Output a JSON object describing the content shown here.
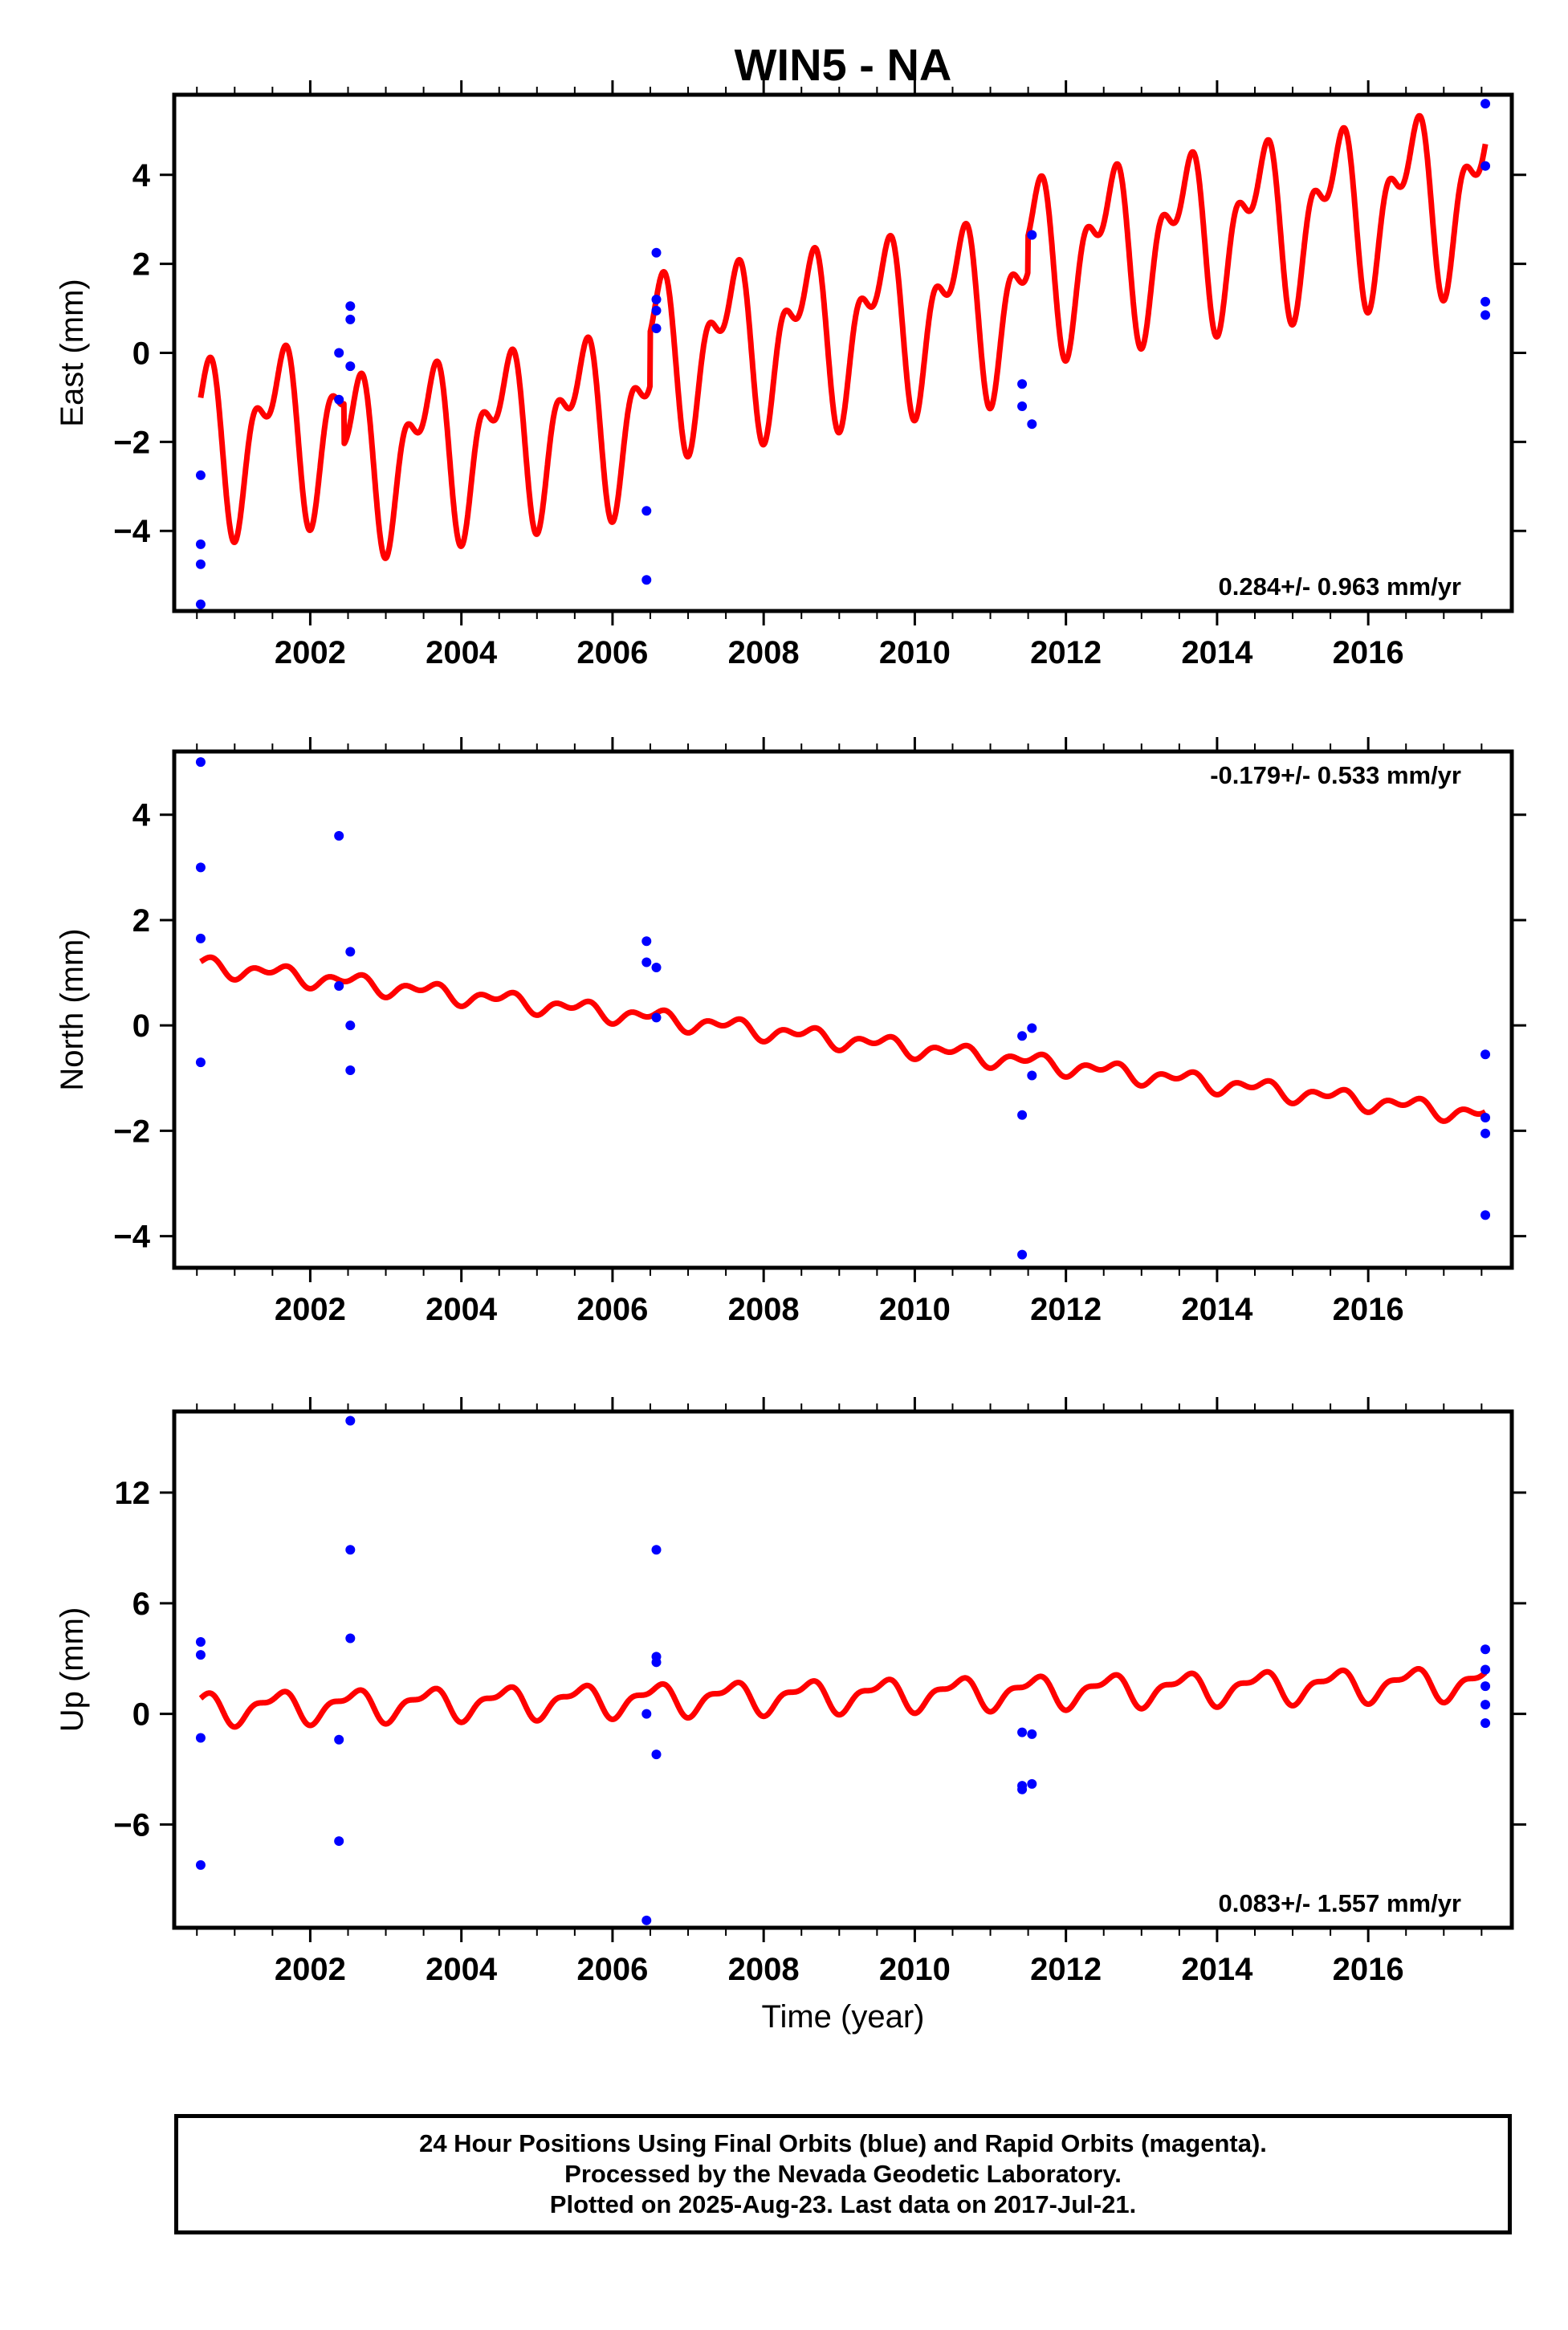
{
  "title": "WIN5 - NA",
  "xlabel": "Time (year)",
  "footer": [
    "24 Hour Positions Using Final Orbits (blue) and Rapid Orbits (magenta).",
    "Processed by the Nevada Geodetic Laboratory.",
    "Plotted on 2025-Aug-23. Last data on 2017-Jul-21."
  ],
  "colors": {
    "final_orbit_points": "#0000ff",
    "model_line": "#ff0000"
  },
  "chart_data": [
    {
      "type": "scatter",
      "id": "east",
      "ylabel": "East (mm)",
      "xlim": [
        2000.2,
        2017.9
      ],
      "ylim": [
        -5.8,
        5.8
      ],
      "x_ticks": [
        "2002",
        "2004",
        "2006",
        "2008",
        "2010",
        "2012",
        "2014",
        "2016"
      ],
      "y_ticks": [
        "−4",
        "−2",
        "0",
        "2",
        "4"
      ],
      "rate": "0.284+/- 0.963 mm/yr",
      "points": [
        [
          2000.55,
          -2.75
        ],
        [
          2000.55,
          -4.3
        ],
        [
          2000.55,
          -4.75
        ],
        [
          2000.55,
          -5.65
        ],
        [
          2002.38,
          0.0
        ],
        [
          2002.38,
          -1.05
        ],
        [
          2002.53,
          1.05
        ],
        [
          2002.53,
          0.75
        ],
        [
          2002.53,
          -0.3
        ],
        [
          2006.45,
          -3.55
        ],
        [
          2006.45,
          -5.1
        ],
        [
          2006.58,
          2.25
        ],
        [
          2006.58,
          1.2
        ],
        [
          2006.58,
          0.95
        ],
        [
          2006.58,
          0.55
        ],
        [
          2011.42,
          -0.7
        ],
        [
          2011.42,
          -1.2
        ],
        [
          2011.55,
          2.65
        ],
        [
          2011.55,
          -1.6
        ],
        [
          2017.55,
          5.6
        ],
        [
          2017.55,
          4.2
        ],
        [
          2017.55,
          1.15
        ],
        [
          2017.55,
          0.85
        ]
      ],
      "model": {
        "x_start": 2000.55,
        "x_end": 2017.55,
        "y_start": -2.0,
        "y_end": 2.6,
        "annual_amp": 1.55,
        "semiannual_amp": 0.95,
        "steps": [
          [
            2002.45,
            -0.9
          ],
          [
            2006.5,
            1.2
          ],
          [
            2011.5,
            0.8
          ]
        ]
      }
    },
    {
      "type": "scatter",
      "id": "north",
      "ylabel": "North (mm)",
      "xlim": [
        2000.2,
        2017.9
      ],
      "ylim": [
        -4.6,
        5.2
      ],
      "x_ticks": [
        "2002",
        "2004",
        "2006",
        "2008",
        "2010",
        "2012",
        "2014",
        "2016"
      ],
      "y_ticks": [
        "−4",
        "−2",
        "0",
        "2",
        "4"
      ],
      "rate": "-0.179+/- 0.533 mm/yr",
      "points": [
        [
          2000.55,
          5.0
        ],
        [
          2000.55,
          3.0
        ],
        [
          2000.55,
          1.65
        ],
        [
          2000.55,
          -0.7
        ],
        [
          2002.38,
          3.6
        ],
        [
          2002.38,
          0.75
        ],
        [
          2002.53,
          1.4
        ],
        [
          2002.53,
          0.0
        ],
        [
          2002.53,
          -0.85
        ],
        [
          2006.45,
          1.6
        ],
        [
          2006.45,
          1.2
        ],
        [
          2006.58,
          1.1
        ],
        [
          2006.58,
          0.15
        ],
        [
          2011.42,
          -0.2
        ],
        [
          2011.42,
          -1.7
        ],
        [
          2011.42,
          -4.35
        ],
        [
          2011.55,
          -0.05
        ],
        [
          2011.55,
          -0.95
        ],
        [
          2017.55,
          -0.55
        ],
        [
          2017.55,
          -1.75
        ],
        [
          2017.55,
          -2.05
        ],
        [
          2017.55,
          -3.6
        ]
      ],
      "model": {
        "x_start": 2000.55,
        "x_end": 2017.55,
        "y_start": 1.15,
        "y_end": -1.7,
        "annual_amp": 0.12,
        "semiannual_amp": 0.1,
        "steps": []
      }
    },
    {
      "type": "scatter",
      "id": "up",
      "ylabel": "Up (mm)",
      "xlim": [
        2000.2,
        2017.9
      ],
      "ylim": [
        -11.6,
        16.4
      ],
      "x_ticks": [
        "2002",
        "2004",
        "2006",
        "2008",
        "2010",
        "2012",
        "2014",
        "2016"
      ],
      "y_ticks": [
        "−6",
        "0",
        "6",
        "12"
      ],
      "rate": "0.083+/- 1.557 mm/yr",
      "points": [
        [
          2000.55,
          3.9
        ],
        [
          2000.55,
          3.2
        ],
        [
          2000.55,
          -1.3
        ],
        [
          2000.55,
          -8.2
        ],
        [
          2002.38,
          -1.4
        ],
        [
          2002.38,
          -6.9
        ],
        [
          2002.53,
          15.9
        ],
        [
          2002.53,
          8.9
        ],
        [
          2002.53,
          4.1
        ],
        [
          2006.45,
          0.0
        ],
        [
          2006.45,
          -11.2
        ],
        [
          2006.58,
          8.9
        ],
        [
          2006.58,
          3.1
        ],
        [
          2006.58,
          2.8
        ],
        [
          2006.58,
          -2.2
        ],
        [
          2011.42,
          -1.0
        ],
        [
          2011.42,
          -3.9
        ],
        [
          2011.42,
          -4.1
        ],
        [
          2011.55,
          -1.1
        ],
        [
          2011.55,
          -3.8
        ],
        [
          2017.55,
          3.5
        ],
        [
          2017.55,
          2.4
        ],
        [
          2017.55,
          1.5
        ],
        [
          2017.55,
          0.5
        ],
        [
          2017.55,
          -0.5
        ]
      ],
      "model": {
        "x_start": 2000.55,
        "x_end": 2017.55,
        "y_start": 0.3,
        "y_end": 1.7,
        "annual_amp": 0.75,
        "semiannual_amp": 0.35,
        "steps": []
      }
    }
  ]
}
